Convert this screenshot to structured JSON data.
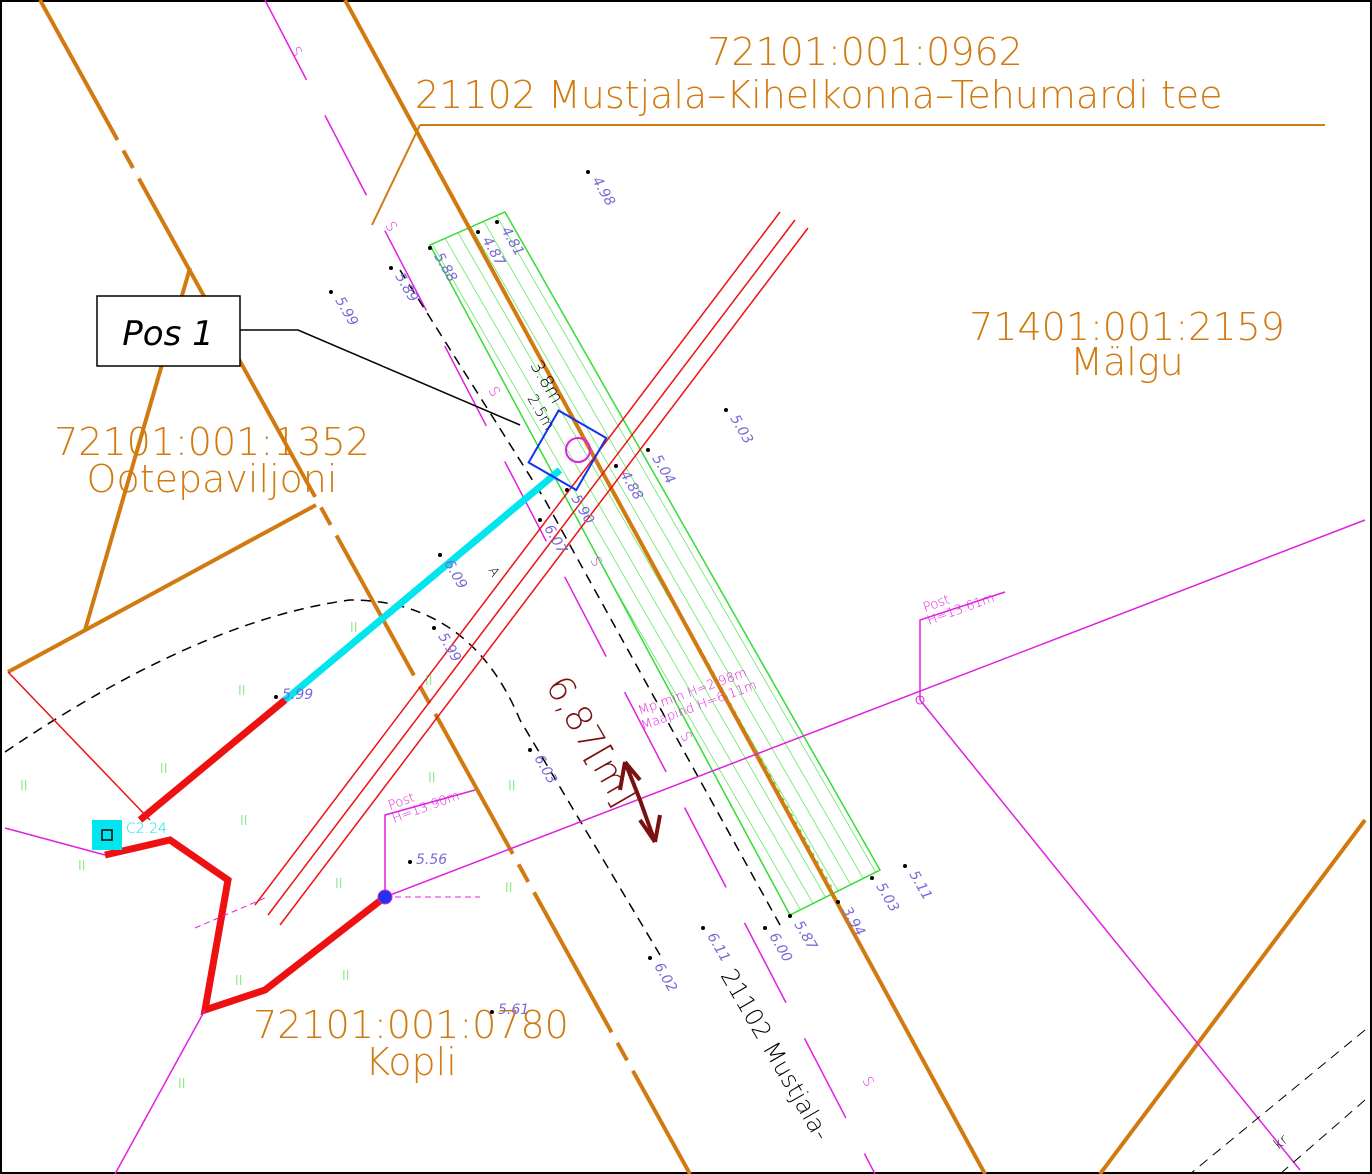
{
  "parcels": [
    {
      "code": "72101:001:0962",
      "name": "21102 Mustjala–Kihelkonna–Tehumardi tee"
    },
    {
      "code": "71401:001:2159",
      "name": "Mälgu"
    },
    {
      "code": "72101:001:1352",
      "name": "Ootepaviljoni"
    },
    {
      "code": "72101:001:0780",
      "name": "Kopli"
    }
  ],
  "position_label": "Pos 1",
  "distance_label": "6,87[m]",
  "road_label": "21102 Mustjala-",
  "spot_heights": [
    "4.98",
    "4.81",
    "4.87",
    "5.88",
    "5.89",
    "5.99",
    "5.03",
    "5.04",
    "4.88",
    "5.90",
    "6.07",
    "6.09",
    "5.99",
    "6.03",
    "6.02",
    "6.11",
    "6.00",
    "5.87",
    "3.94",
    "5.03",
    "5.11"
  ],
  "spot_heights_flat": [
    "5.99",
    "5.56",
    "5.61"
  ],
  "poles": [
    {
      "title": "Post",
      "height": "H=13.61m"
    },
    {
      "title": "Post",
      "height": "H=13.90m"
    }
  ],
  "crossing": {
    "min": "Mp.min H=2.98m",
    "ground": "Maapind H=6.11m"
  },
  "chamber_label": "C2.24",
  "dimensions": [
    "3.8m",
    "2.5m"
  ],
  "section_marker": "A",
  "sewer_marker": "S",
  "grass_marker": "II",
  "cable_marker": "kr"
}
